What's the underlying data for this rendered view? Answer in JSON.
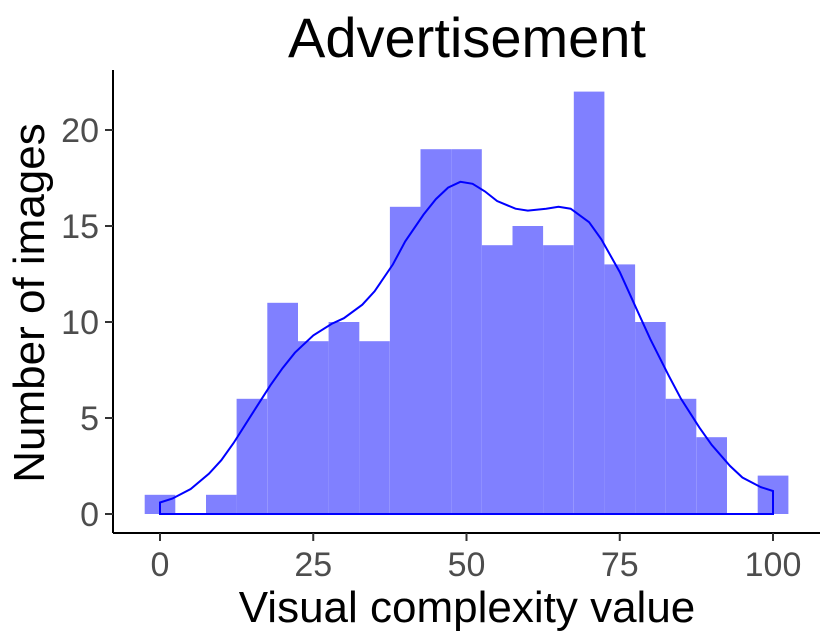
{
  "chart_data": {
    "type": "bar",
    "title": "Advertisement",
    "xlabel": "Visual complexity value",
    "ylabel": "Number of images",
    "xlim": [
      -2.5,
      102.5
    ],
    "ylim": [
      0,
      22
    ],
    "x_ticks": [
      0,
      25,
      50,
      75,
      100
    ],
    "y_ticks": [
      0,
      5,
      10,
      15,
      20
    ],
    "bin_width": 5,
    "bin_centers": [
      0,
      5,
      10,
      15,
      20,
      25,
      30,
      35,
      40,
      45,
      50,
      55,
      60,
      65,
      70,
      75,
      80,
      85,
      90,
      95,
      100
    ],
    "values": [
      1,
      0,
      1,
      6,
      11,
      9,
      10,
      9,
      16,
      19,
      19,
      14,
      15,
      14,
      22,
      13,
      10,
      6,
      4,
      0,
      2
    ],
    "density_curve": {
      "x": [
        0,
        2,
        5,
        8,
        10,
        12,
        15,
        18,
        20,
        22,
        25,
        28,
        30,
        33,
        35,
        38,
        40,
        43,
        45,
        47,
        49,
        51,
        53,
        55,
        58,
        60,
        63,
        65,
        67,
        70,
        72,
        75,
        78,
        80,
        83,
        85,
        88,
        90,
        93,
        95,
        98,
        100
      ],
      "y": [
        0.6,
        0.8,
        1.3,
        2.1,
        2.8,
        3.7,
        5.2,
        6.7,
        7.6,
        8.4,
        9.3,
        9.9,
        10.2,
        10.9,
        11.6,
        13.0,
        14.2,
        15.6,
        16.4,
        17.0,
        17.3,
        17.2,
        16.8,
        16.3,
        15.9,
        15.8,
        15.9,
        16.0,
        15.9,
        15.2,
        14.3,
        12.6,
        10.5,
        9.1,
        7.2,
        6.0,
        4.5,
        3.6,
        2.5,
        1.9,
        1.4,
        1.2
      ]
    },
    "bar_color": "#8080ff",
    "line_color": "#0000ff",
    "grid": false,
    "legend": "none"
  }
}
